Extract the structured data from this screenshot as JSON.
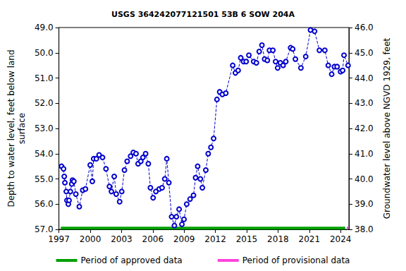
{
  "chart_data": {
    "type": "line",
    "title": "USGS 364242077121501 53B 6 SOW 204A",
    "y_label": "Depth to water level, feet below land\nsurface",
    "y2_label": "Groundwater level above NGVD 1929, feet",
    "xlim": [
      1997,
      2024.8
    ],
    "xticks": [
      1997,
      2000,
      2003,
      2006,
      2009,
      2012,
      2015,
      2018,
      2021,
      2024
    ],
    "ylim": [
      57,
      49
    ],
    "yticks": [
      {
        "value": 49,
        "label": "49.0"
      },
      {
        "value": 50,
        "label": "50.0"
      },
      {
        "value": 51,
        "label": "51.0"
      },
      {
        "value": 52,
        "label": "52.0"
      },
      {
        "value": 53,
        "label": "53.0"
      },
      {
        "value": 54,
        "label": "54.0"
      },
      {
        "value": 55,
        "label": "55.0"
      },
      {
        "value": 56,
        "label": "56.0"
      },
      {
        "value": 57,
        "label": "57.0"
      }
    ],
    "y2lim": [
      38,
      46
    ],
    "y2ticks": [
      {
        "value": 38,
        "label": "38.0"
      },
      {
        "value": 39,
        "label": "39.0"
      },
      {
        "value": 40,
        "label": "40.0"
      },
      {
        "value": 41,
        "label": "41.0"
      },
      {
        "value": 42,
        "label": "42.0"
      },
      {
        "value": 43,
        "label": "43.0"
      },
      {
        "value": 44,
        "label": "44.0"
      },
      {
        "value": 45,
        "label": "45.0"
      },
      {
        "value": 46,
        "label": "46.0"
      }
    ],
    "grid": false,
    "legend": "bottom",
    "series": [
      {
        "color": "#0000cc",
        "marker": "circle",
        "line_style": "dashed",
        "x": [
          1997.25,
          1997.44,
          1997.51,
          1997.57,
          1997.7,
          1997.77,
          1997.9,
          1997.97,
          1998.1,
          1998.23,
          1998.3,
          1998.43,
          1998.62,
          1998.95,
          1999.28,
          1999.54,
          2000.0,
          2000.2,
          2000.33,
          2000.59,
          2000.85,
          2001.18,
          2001.51,
          2001.84,
          2002.03,
          2002.3,
          2002.49,
          2002.82,
          2003.02,
          2003.28,
          2003.54,
          2003.87,
          2004.13,
          2004.39,
          2004.59,
          2004.85,
          2005.05,
          2005.31,
          2005.57,
          2005.77,
          2006.03,
          2006.29,
          2006.62,
          2006.89,
          2007.15,
          2007.34,
          2007.54,
          2007.8,
          2008.07,
          2008.26,
          2008.52,
          2008.79,
          2008.99,
          2009.25,
          2009.57,
          2009.9,
          2010.1,
          2010.3,
          2010.56,
          2010.75,
          2011.08,
          2011.31,
          2011.57,
          2011.83,
          2012.15,
          2012.41,
          2012.67,
          2013.0,
          2013.66,
          2013.92,
          2014.18,
          2014.43,
          2014.7,
          2014.95,
          2015.21,
          2015.67,
          2015.93,
          2016.2,
          2016.46,
          2016.72,
          2016.98,
          2017.18,
          2017.51,
          2017.77,
          2017.97,
          2018.23,
          2018.49,
          2018.75,
          2019.21,
          2019.41,
          2019.67,
          2020.2,
          2020.66,
          2021.12,
          2021.51,
          2021.97,
          2022.49,
          2022.82,
          2023.15,
          2023.41,
          2023.67,
          2024.0,
          2024.2,
          2024.33,
          2024.72
        ],
        "values": [
          54.5,
          54.6,
          54.9,
          55.15,
          55.5,
          55.85,
          56.0,
          55.85,
          55.5,
          55.2,
          55.05,
          55.1,
          55.6,
          56.1,
          55.45,
          55.4,
          54.45,
          55.1,
          54.2,
          54.2,
          54.05,
          54.15,
          54.6,
          55.3,
          55.5,
          54.9,
          55.6,
          55.9,
          55.5,
          54.65,
          54.3,
          54.1,
          53.95,
          54.0,
          54.4,
          54.3,
          54.15,
          54.0,
          54.4,
          55.35,
          55.75,
          55.5,
          55.4,
          55.35,
          55.0,
          54.2,
          55.15,
          56.5,
          56.85,
          56.5,
          56.2,
          56.8,
          56.6,
          56.0,
          55.8,
          55.65,
          54.95,
          54.5,
          55.0,
          55.35,
          54.65,
          54.0,
          53.75,
          53.4,
          51.85,
          51.55,
          51.65,
          51.6,
          50.5,
          50.8,
          50.7,
          50.2,
          50.35,
          50.35,
          50.1,
          50.35,
          50.4,
          49.95,
          49.7,
          50.25,
          50.3,
          49.9,
          49.9,
          50.35,
          50.6,
          50.4,
          50.5,
          50.35,
          49.8,
          49.85,
          50.25,
          50.6,
          50.15,
          49.1,
          49.15,
          49.9,
          49.9,
          50.5,
          50.85,
          50.55,
          50.55,
          50.75,
          50.7,
          50.1,
          50.5
        ]
      },
      {
        "name": "Period of approved data",
        "color": "#00a000",
        "marker": "none",
        "line_style": "solid",
        "x": [
          1997.18,
          2024.45
        ],
        "values": [
          56.95,
          56.95
        ]
      },
      {
        "name": "Period of provisional data",
        "color": "#ff44dd",
        "marker": "none",
        "line_style": "solid",
        "x": [
          2024.6,
          2024.75
        ],
        "values": [
          56.95,
          56.95
        ]
      }
    ]
  }
}
